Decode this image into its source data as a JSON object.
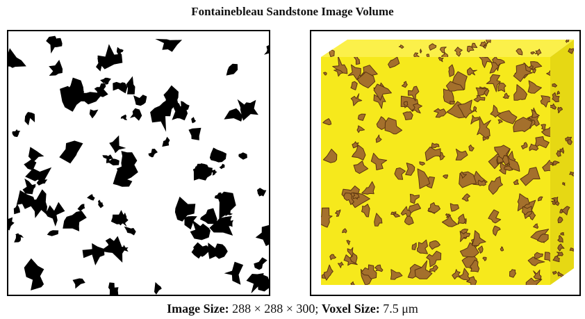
{
  "title": "Fontainebleau Sandstone Image Volume",
  "caption": {
    "image_size_label": "Image Size:",
    "image_size_value": "288 × 288 × 300;",
    "voxel_size_label": "Voxel Size:",
    "voxel_size_value": "7.5 μm"
  }
}
